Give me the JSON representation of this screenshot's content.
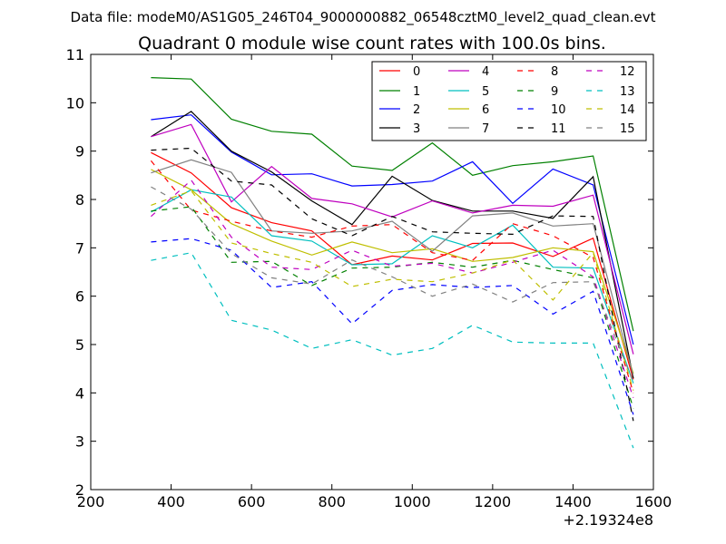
{
  "suptitle": "Data file: modeM0/AS1G05_246T04_9000000882_06548cztM0_level2_quad_clean.evt",
  "chart_data": {
    "type": "line",
    "title": "Quadrant 0 module wise count rates with 100.0s bins.",
    "xlabel": "",
    "ylabel": "",
    "x_offset_label": "+2.19324e8",
    "xlim": [
      200,
      1600
    ],
    "ylim": [
      2,
      11
    ],
    "xticks": [
      200,
      400,
      600,
      800,
      1000,
      1200,
      1400,
      1600
    ],
    "yticks": [
      2,
      3,
      4,
      5,
      6,
      7,
      8,
      9,
      10,
      11
    ],
    "grid": false,
    "legend_position": "top-right",
    "legend_columns": 4,
    "x": [
      350,
      450,
      550,
      650,
      750,
      850,
      950,
      1050,
      1150,
      1250,
      1350,
      1450,
      1550
    ],
    "series": [
      {
        "name": "0",
        "color": "#ff0000",
        "style": "solid",
        "values": [
          8.97,
          8.55,
          7.83,
          7.52,
          7.35,
          6.65,
          6.83,
          6.75,
          7.09,
          7.1,
          6.82,
          7.2,
          4.28
        ]
      },
      {
        "name": "1",
        "color": "#008000",
        "style": "solid",
        "values": [
          10.52,
          10.49,
          9.66,
          9.41,
          9.35,
          8.69,
          8.6,
          9.17,
          8.5,
          8.7,
          8.78,
          8.9,
          5.28
        ]
      },
      {
        "name": "2",
        "color": "#0000ff",
        "style": "solid",
        "values": [
          9.65,
          9.75,
          8.98,
          8.51,
          8.53,
          8.28,
          8.31,
          8.38,
          8.78,
          7.92,
          8.63,
          8.3,
          5.0
        ]
      },
      {
        "name": "3",
        "color": "#000000",
        "style": "solid",
        "values": [
          9.3,
          9.82,
          9.0,
          8.57,
          7.97,
          7.48,
          8.48,
          7.98,
          7.76,
          7.76,
          7.61,
          8.47,
          4.3
        ]
      },
      {
        "name": "4",
        "color": "#bf00bf",
        "style": "solid",
        "values": [
          9.3,
          9.55,
          7.95,
          8.68,
          8.02,
          7.91,
          7.64,
          7.97,
          7.72,
          7.88,
          7.86,
          8.09,
          4.8
        ]
      },
      {
        "name": "5",
        "color": "#00bfbf",
        "style": "solid",
        "values": [
          7.74,
          8.2,
          8.05,
          7.25,
          7.14,
          6.65,
          6.67,
          7.25,
          7.0,
          7.47,
          6.6,
          6.58,
          4.2
        ]
      },
      {
        "name": "6",
        "color": "#bfbf00",
        "style": "solid",
        "values": [
          8.62,
          8.2,
          7.5,
          7.14,
          6.85,
          7.12,
          6.9,
          6.98,
          6.72,
          6.8,
          7.0,
          6.92,
          4.4
        ]
      },
      {
        "name": "7",
        "color": "#808080",
        "style": "solid",
        "values": [
          8.55,
          8.82,
          8.56,
          7.35,
          7.3,
          7.35,
          7.55,
          6.93,
          7.66,
          7.72,
          7.45,
          7.5,
          4.35
        ]
      },
      {
        "name": "8",
        "color": "#ff0000",
        "style": "dashed",
        "values": [
          8.8,
          7.78,
          7.55,
          7.35,
          7.22,
          7.45,
          7.48,
          6.9,
          6.74,
          7.5,
          7.25,
          6.8,
          4.0
        ]
      },
      {
        "name": "9",
        "color": "#008000",
        "style": "dashed",
        "values": [
          7.76,
          7.85,
          6.7,
          6.72,
          6.22,
          6.58,
          6.6,
          6.7,
          6.6,
          6.74,
          6.55,
          6.38,
          3.68
        ]
      },
      {
        "name": "10",
        "color": "#0000ff",
        "style": "dashed",
        "values": [
          7.12,
          7.19,
          6.95,
          6.18,
          6.3,
          5.43,
          6.12,
          6.24,
          6.18,
          6.22,
          5.63,
          6.1,
          3.55
        ]
      },
      {
        "name": "11",
        "color": "#000000",
        "style": "dashed",
        "values": [
          9.02,
          9.06,
          8.38,
          8.3,
          7.6,
          7.25,
          7.65,
          7.33,
          7.3,
          7.28,
          7.66,
          7.65,
          3.42
        ]
      },
      {
        "name": "12",
        "color": "#bf00bf",
        "style": "dashed",
        "values": [
          7.65,
          8.4,
          7.22,
          6.6,
          6.55,
          6.95,
          6.62,
          6.68,
          6.48,
          6.7,
          6.95,
          6.4,
          3.9
        ]
      },
      {
        "name": "13",
        "color": "#00bfbf",
        "style": "dashed",
        "values": [
          6.74,
          6.9,
          5.5,
          5.3,
          4.92,
          5.1,
          4.78,
          4.92,
          5.4,
          5.05,
          5.03,
          5.03,
          2.86
        ]
      },
      {
        "name": "14",
        "color": "#bfbf00",
        "style": "dashed",
        "values": [
          7.88,
          8.18,
          7.1,
          6.88,
          6.7,
          6.2,
          6.35,
          6.3,
          6.48,
          6.75,
          5.92,
          6.9,
          4.05
        ]
      },
      {
        "name": "15",
        "color": "#808080",
        "style": "dashed",
        "values": [
          8.26,
          7.8,
          6.88,
          6.38,
          6.25,
          6.75,
          6.4,
          6.0,
          6.25,
          5.88,
          6.28,
          6.3,
          4.22
        ]
      }
    ]
  }
}
